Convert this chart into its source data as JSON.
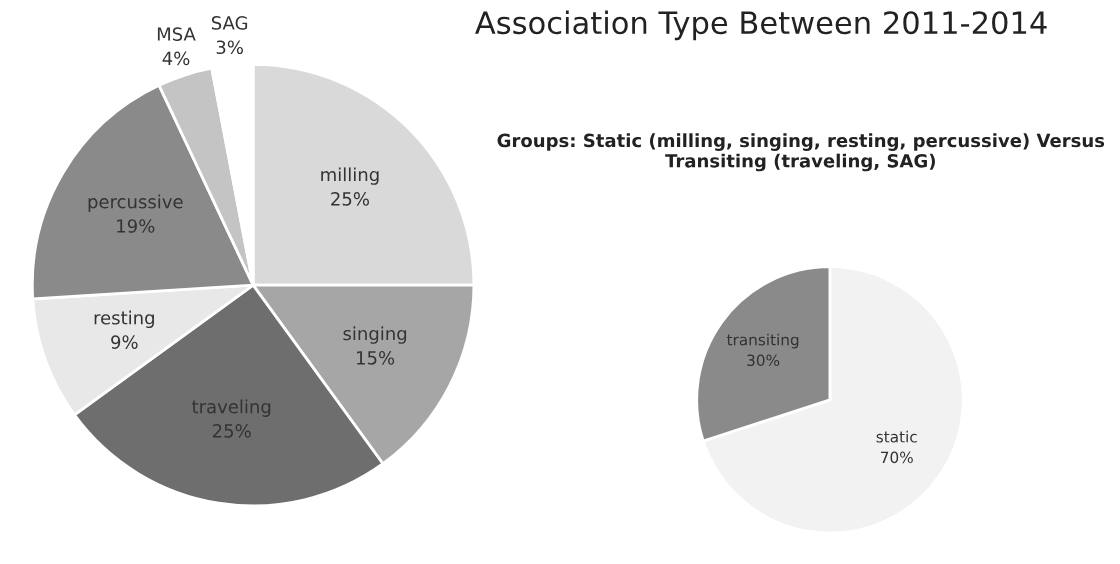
{
  "chart_data": [
    {
      "type": "pie",
      "title": "Association Type Between 2011-2014",
      "categories": [
        "milling",
        "singing",
        "traveling",
        "resting",
        "percussive",
        "MSA",
        "SAG"
      ],
      "values": [
        25,
        15,
        25,
        9,
        19,
        4,
        3
      ],
      "value_labels": [
        "25%",
        "15%",
        "25%",
        "9%",
        "19%",
        "4%",
        "3%"
      ],
      "colors": [
        "#d9d9d9",
        "#a6a6a6",
        "#6e6e6e",
        "#e8e8e8",
        "#8a8a8a",
        "#c4c4c4",
        "#ffffff"
      ]
    },
    {
      "type": "pie",
      "title": "Groups: Static (milling, singing, resting, percussive) Versus Transiting (traveling, SAG)",
      "categories": [
        "static",
        "transiting"
      ],
      "values": [
        70,
        30
      ],
      "value_labels": [
        "70%",
        "30%"
      ],
      "colors": [
        "#f2f2f2",
        "#8a8a8a"
      ]
    }
  ]
}
